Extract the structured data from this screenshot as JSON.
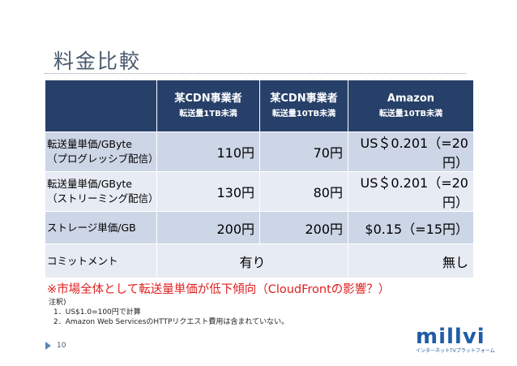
{
  "slide": {
    "title": "料金比較",
    "page_number": "10"
  },
  "table": {
    "headers": [
      {
        "name": "",
        "sub": ""
      },
      {
        "name": "某CDN事業者",
        "sub": "転送量1TB未満"
      },
      {
        "name": "某CDN事業者",
        "sub": "転送量10TB未満"
      },
      {
        "name": "Amazon",
        "sub": "転送量10TB未満"
      }
    ],
    "rows": [
      {
        "label_line1": "転送量単価/GByte",
        "label_line2": "（プログレッシブ配信）",
        "c1": "110円",
        "c2": "70円",
        "c3": "US＄0.201（=20円）"
      },
      {
        "label_line1": "転送量単価/GByte",
        "label_line2": "（ストリーミング配信）",
        "c1": "130円",
        "c2": "80円",
        "c3": "US＄0.201（=20円）"
      },
      {
        "label_line1": "ストレージ単価/GB",
        "label_line2": "",
        "c1": "200円",
        "c2": "200円",
        "c3": "$0.15（=15円）"
      },
      {
        "label_line1": "コミットメント",
        "label_line2": "",
        "c12": "有り",
        "c3": "無し"
      }
    ]
  },
  "note": "※市場全体として転送量単価が低下傾向（CloudFrontの影響？）",
  "footnotes": {
    "heading": "注釈)",
    "items": [
      "1．US$1.0=100円で計算",
      "2．Amazon Web ServicesのHTTPリクエスト費用は含まれていない。"
    ]
  },
  "logo": {
    "word": "millvi",
    "tagline": "インターネットTVプラットフォーム"
  },
  "colors": {
    "header_bg": "#27406a",
    "row_dark": "#cdd6e6",
    "row_light": "#e7ebf3",
    "title": "#4a5b6e",
    "note_red": "#e02020",
    "logo_blue": "#1f5ca8"
  }
}
